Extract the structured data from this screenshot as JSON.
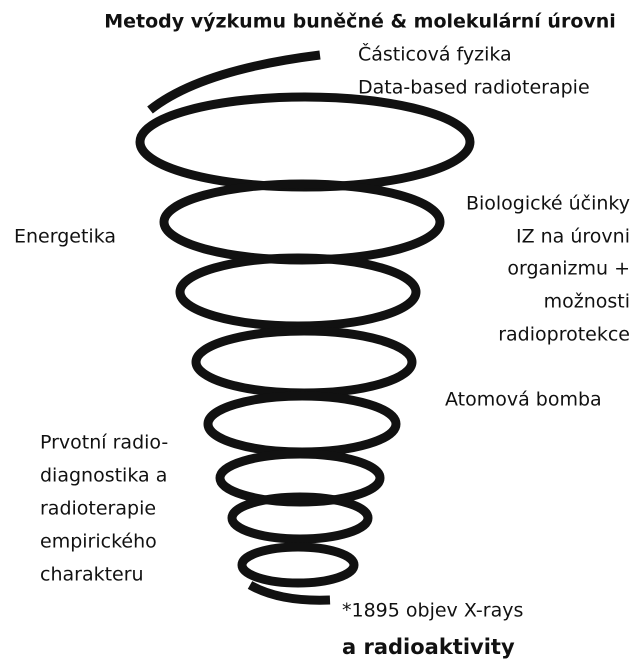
{
  "title": "Metody výzkumu buněčné & molekulární úrovni",
  "labels": [
    {
      "lines": [
        "Částicová fyzika",
        "Data-based radioterapie"
      ]
    },
    {
      "lines": [
        "Energetika"
      ]
    },
    {
      "lines": [
        "Biologické účinky",
        "IZ na úrovni",
        "organizmu +",
        "možnosti",
        "radioprotekce"
      ]
    },
    {
      "lines": [
        "Atomová bomba"
      ]
    },
    {
      "lines": [
        "Prvotní radio-",
        "diagnostika a",
        "radioterapie",
        "empirického",
        "charakteru"
      ]
    },
    {
      "lines": [
        "*1895 objev X-rays",
        "a radioaktivity"
      ]
    }
  ]
}
